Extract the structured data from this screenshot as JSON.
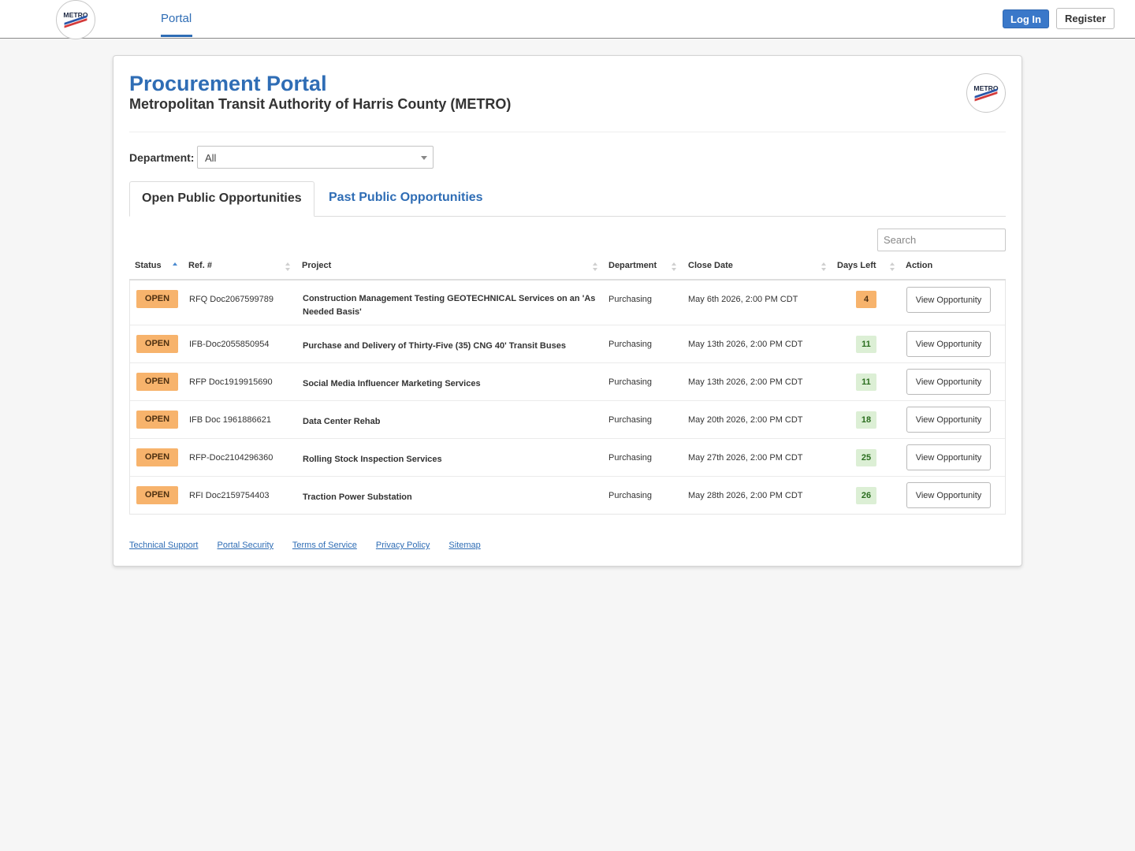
{
  "nav": {
    "logo_text": "METRO",
    "portal_label": "Portal",
    "login_label": "Log In",
    "register_label": "Register"
  },
  "header": {
    "title": "Procurement Portal",
    "subtitle": "Metropolitan Transit Authority of Harris County (METRO)"
  },
  "department": {
    "label": "Department:",
    "selected": "All"
  },
  "tabs": [
    {
      "label": "Open Public Opportunities",
      "active": true
    },
    {
      "label": "Past Public Opportunities",
      "active": false
    }
  ],
  "search": {
    "placeholder": "Search"
  },
  "table": {
    "columns": {
      "status": "Status",
      "ref": "Ref. #",
      "project": "Project",
      "department": "Department",
      "close_date": "Close Date",
      "days_left": "Days Left",
      "action": "Action"
    },
    "rows": [
      {
        "status": "OPEN",
        "ref": "RFQ Doc2067599789",
        "project": "Construction Management Testing GEOTECHNICAL Services on an 'As Needed Basis'",
        "department": "Purchasing",
        "close_date": "May 6th 2026, 2:00 PM CDT",
        "days_left": "4",
        "action": "View Opportunity"
      },
      {
        "status": "OPEN",
        "ref": "IFB-Doc2055850954",
        "project": "Purchase and Delivery of Thirty-Five (35) CNG 40' Transit Buses",
        "department": "Purchasing",
        "close_date": "May 13th 2026, 2:00 PM CDT",
        "days_left": "11",
        "action": "View Opportunity"
      },
      {
        "status": "OPEN",
        "ref": "RFP Doc1919915690",
        "project": "Social Media Influencer Marketing Services",
        "department": "Purchasing",
        "close_date": "May 13th 2026, 2:00 PM CDT",
        "days_left": "11",
        "action": "View Opportunity"
      },
      {
        "status": "OPEN",
        "ref": "IFB Doc 1961886621",
        "project": "Data Center Rehab",
        "department": "Purchasing",
        "close_date": "May 20th 2026, 2:00 PM CDT",
        "days_left": "18",
        "action": "View Opportunity"
      },
      {
        "status": "OPEN",
        "ref": "RFP-Doc2104296360",
        "project": "Rolling Stock Inspection Services",
        "department": "Purchasing",
        "close_date": "May 27th 2026, 2:00 PM CDT",
        "days_left": "25",
        "action": "View Opportunity"
      },
      {
        "status": "OPEN",
        "ref": "RFI Doc2159754403",
        "project": "Traction Power Substation",
        "department": "Purchasing",
        "close_date": "May 28th 2026, 2:00 PM CDT",
        "days_left": "26",
        "action": "View Opportunity"
      }
    ]
  },
  "footer": {
    "links": [
      "Technical Support",
      "Portal Security",
      "Terms of Service",
      "Privacy Policy",
      "Sitemap"
    ]
  },
  "colors": {
    "accent": "#2f6db5",
    "badge_open": "#f7b36c",
    "days_ok": "#dcefd5",
    "days_warn": "#f7b36c"
  },
  "icons": {
    "logo": "metro-logo-icon",
    "sort": "sort-arrows-icon",
    "select_caret": "chevron-down-icon"
  }
}
